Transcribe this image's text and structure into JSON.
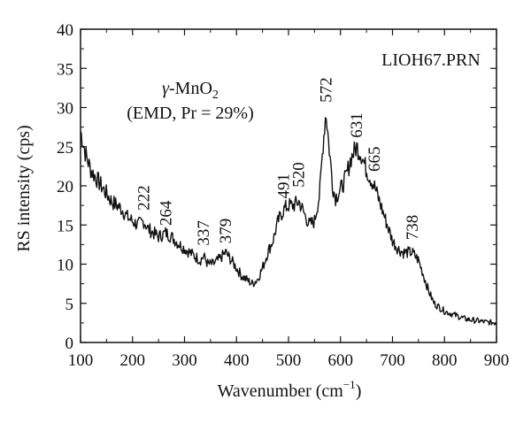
{
  "chart_data": {
    "type": "line",
    "title": "",
    "file_label": "LIOH67.PRN",
    "sample_label": {
      "compound": "γ-MnO",
      "compound_subscript": "2",
      "detail": "(EMD, Pr = 29%)"
    },
    "xlabel": "Wavenumber (cm",
    "xlabel_sup": "−1",
    "xlabel_close": ")",
    "ylabel": "RS intensity (cps)",
    "xlim": [
      100,
      900
    ],
    "ylim": [
      0,
      40
    ],
    "xticks": [
      "100",
      "200",
      "300",
      "400",
      "500",
      "600",
      "700",
      "800",
      "900"
    ],
    "yticks": [
      "0",
      "5",
      "10",
      "15",
      "20",
      "25",
      "30",
      "35",
      "40"
    ],
    "grid": false,
    "series": [
      {
        "color": "#111111",
        "x": [
          100,
          110,
          120,
          130,
          140,
          150,
          160,
          170,
          180,
          190,
          200,
          210,
          222,
          230,
          240,
          250,
          264,
          275,
          290,
          300,
          310,
          320,
          330,
          337,
          345,
          355,
          365,
          379,
          390,
          400,
          410,
          420,
          430,
          440,
          450,
          460,
          470,
          480,
          491,
          500,
          510,
          520,
          530,
          540,
          550,
          560,
          566,
          572,
          578,
          585,
          590,
          600,
          610,
          620,
          631,
          640,
          650,
          665,
          680,
          690,
          700,
          710,
          720,
          730,
          738,
          750,
          760,
          770,
          780,
          800,
          820,
          840,
          860,
          880,
          900
        ],
        "y": [
          27,
          24,
          22,
          21,
          20,
          19,
          18,
          17.5,
          17,
          16,
          15.5,
          15,
          15.5,
          14.5,
          14,
          13.5,
          14,
          13.5,
          12.5,
          12,
          11.5,
          11,
          10.5,
          11,
          10,
          10,
          10.5,
          11.5,
          10.5,
          9.5,
          8.5,
          8,
          7.5,
          8,
          9.5,
          11.5,
          13,
          15.5,
          17,
          17.5,
          17.5,
          18,
          16.5,
          15,
          15.5,
          19,
          25,
          29.5,
          25,
          20,
          18.5,
          19.5,
          21,
          23.5,
          25,
          24,
          22,
          20,
          17,
          15,
          13,
          12,
          11.5,
          11.5,
          11.5,
          10.5,
          8.5,
          6.5,
          5,
          4,
          3.5,
          3,
          2.8,
          2.6,
          2.5
        ]
      }
    ],
    "peaks": [
      {
        "label": "222",
        "x": 222,
        "y": 15.5
      },
      {
        "label": "264",
        "x": 264,
        "y": 14
      },
      {
        "label": "337",
        "x": 337,
        "y": 11
      },
      {
        "label": "379",
        "x": 379,
        "y": 11.5
      },
      {
        "label": "491",
        "x": 491,
        "y": 17
      },
      {
        "label": "520",
        "x": 520,
        "y": 18
      },
      {
        "label": "572",
        "x": 572,
        "y": 29.5
      },
      {
        "label": "631",
        "x": 631,
        "y": 25
      },
      {
        "label": "665",
        "x": 665,
        "y": 20
      },
      {
        "label": "738",
        "x": 738,
        "y": 11.5
      }
    ]
  }
}
